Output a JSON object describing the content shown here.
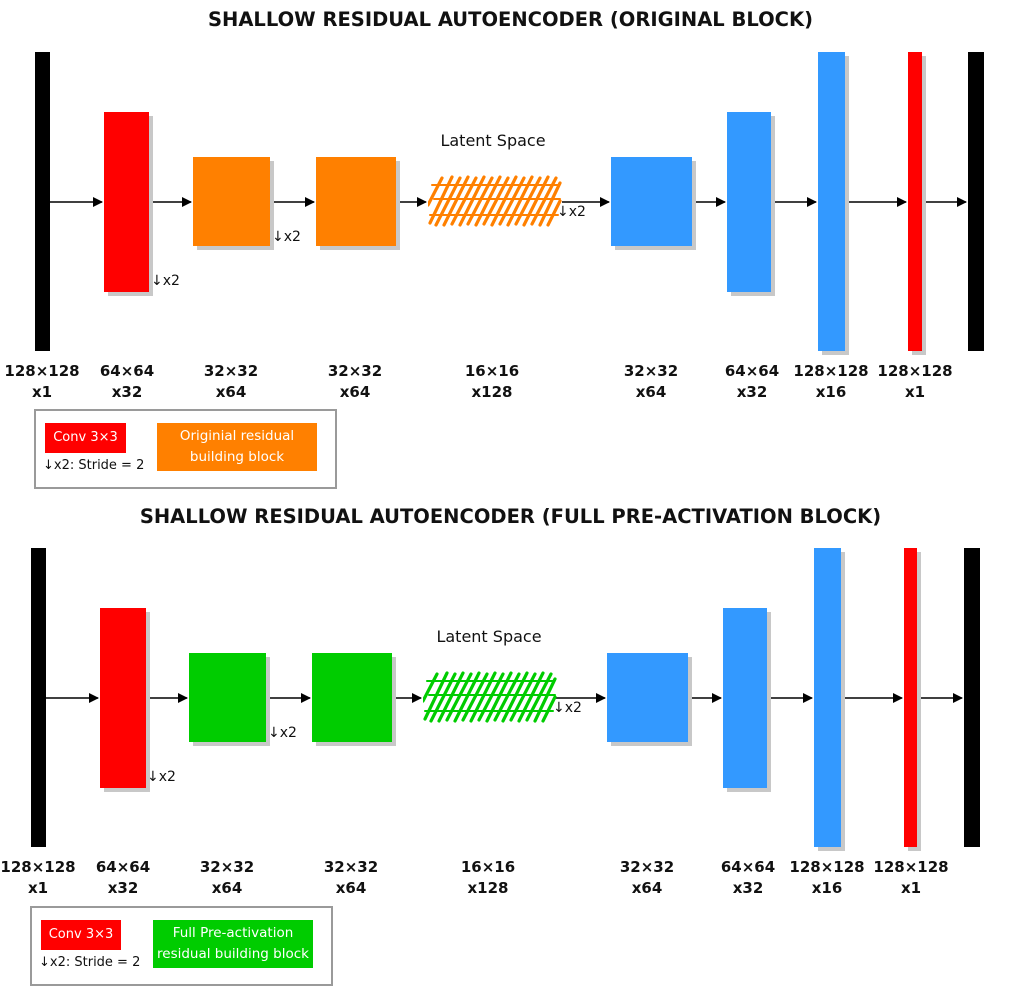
{
  "colors": {
    "input_output": "#000000",
    "conv": "#ff0000",
    "original_block": "#ff8000",
    "preact_block": "#00cc00",
    "decoder": "#3399ff",
    "legend_border": "#9a9a9a"
  },
  "diagrams": [
    {
      "title": "SHALLOW RESIDUAL AUTOENCODER (ORIGINAL BLOCK)",
      "latent_label": "Latent Space",
      "block_color": "#ff8000",
      "stride_label": "↓x2",
      "dims": [
        {
          "size": "128×128",
          "channels": "x1"
        },
        {
          "size": "64×64",
          "channels": "x32"
        },
        {
          "size": "32×32",
          "channels": "x64"
        },
        {
          "size": "32×32",
          "channels": "x64"
        },
        {
          "size": "16×16",
          "channels": "x128"
        },
        {
          "size": "32×32",
          "channels": "x64"
        },
        {
          "size": "64×64",
          "channels": "x32"
        },
        {
          "size": "128×128",
          "channels": "x16"
        },
        {
          "size": "128×128",
          "channels": "x1"
        }
      ],
      "legend": {
        "conv_label": "Conv 3×3",
        "stride_note": "↓x2: Stride = 2",
        "block_line1": "Originial residual",
        "block_line2": "building block"
      }
    },
    {
      "title": "SHALLOW RESIDUAL AUTOENCODER (FULL PRE-ACTIVATION BLOCK)",
      "latent_label": "Latent Space",
      "block_color": "#00cc00",
      "stride_label": "↓x2",
      "dims": [
        {
          "size": "128×128",
          "channels": "x1"
        },
        {
          "size": "64×64",
          "channels": "x32"
        },
        {
          "size": "32×32",
          "channels": "x64"
        },
        {
          "size": "32×32",
          "channels": "x64"
        },
        {
          "size": "16×16",
          "channels": "x128"
        },
        {
          "size": "32×32",
          "channels": "x64"
        },
        {
          "size": "64×64",
          "channels": "x32"
        },
        {
          "size": "128×128",
          "channels": "x16"
        },
        {
          "size": "128×128",
          "channels": "x1"
        }
      ],
      "legend": {
        "conv_label": "Conv 3×3",
        "stride_note": "↓x2: Stride = 2",
        "block_line1": "Full Pre-activation",
        "block_line2": "residual building block"
      }
    }
  ]
}
